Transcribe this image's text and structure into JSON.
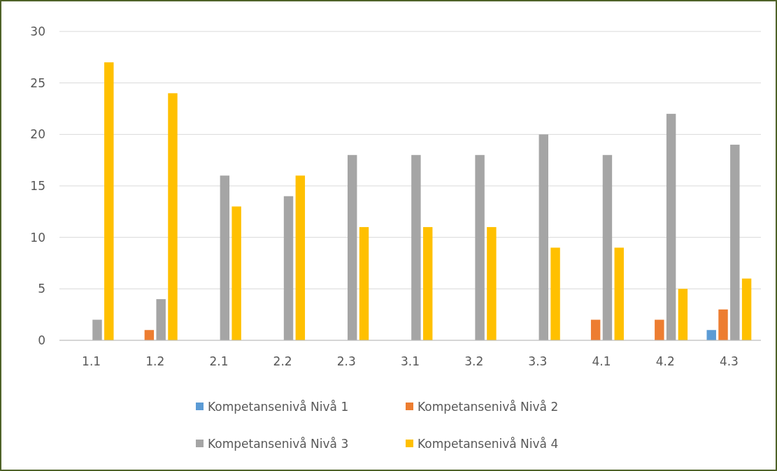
{
  "chart_data": {
    "type": "bar",
    "categories": [
      "1.1",
      "1.2",
      "2.1",
      "2.2",
      "2.3",
      "3.1",
      "3.2",
      "3.3",
      "4.1",
      "4.2",
      "4.3"
    ],
    "series": [
      {
        "name": "Kompetansenivå Nivå 1",
        "color": "#5b9bd5",
        "values": [
          0,
          0,
          0,
          0,
          0,
          0,
          0,
          0,
          0,
          0,
          1
        ]
      },
      {
        "name": "Kompetansenivå Nivå 2",
        "color": "#ed7d31",
        "values": [
          0,
          1,
          0,
          0,
          0,
          0,
          0,
          0,
          2,
          2,
          3
        ]
      },
      {
        "name": "Kompetansenivå Nivå 3",
        "color": "#a5a5a5",
        "values": [
          2,
          4,
          16,
          14,
          18,
          18,
          18,
          20,
          18,
          22,
          19
        ]
      },
      {
        "name": "Kompetansenivå Nivå 4",
        "color": "#ffc000",
        "values": [
          27,
          24,
          13,
          16,
          11,
          11,
          11,
          9,
          9,
          5,
          6
        ]
      }
    ],
    "ylim": [
      0,
      30
    ],
    "yticks": [
      0,
      5,
      10,
      15,
      20,
      25,
      30
    ],
    "grid": "y",
    "legend": "bottom"
  }
}
